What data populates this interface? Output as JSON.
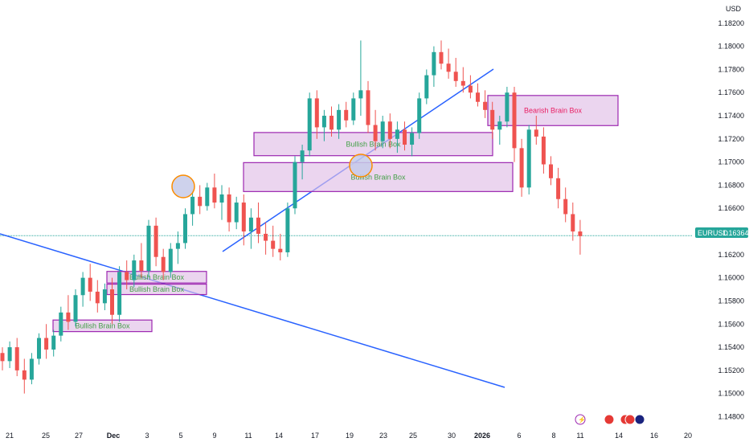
{
  "chart_data": {
    "type": "candlestick",
    "symbol": "EURUSD",
    "currency": "USD",
    "last_price": "1.16364",
    "colors": {
      "up": "#26a69a",
      "down": "#ef5350",
      "box_fill": "#e1bee7",
      "box_stroke": "#9c27b0",
      "bullish_text": "#43a047",
      "bearish_text": "#e91e63",
      "trendline": "#2962ff",
      "price_line": "#26a69a",
      "marker_fill": "#c5cae9",
      "marker_stroke": "#fb8c00"
    },
    "y_ticks": [
      "1.18200",
      "1.18000",
      "1.17800",
      "1.17600",
      "1.17400",
      "1.17200",
      "1.17000",
      "1.16800",
      "1.16600",
      "1.16400",
      "1.16200",
      "1.16000",
      "1.15800",
      "1.15600",
      "1.15400",
      "1.15200",
      "1.15000",
      "1.14800"
    ],
    "ylim": [
      1.1472,
      1.184
    ],
    "x_ticks": [
      {
        "label": "21",
        "i": 0
      },
      {
        "label": "25",
        "i": 3
      },
      {
        "label": "27",
        "i": 5
      },
      {
        "label": "Dec",
        "i": 7,
        "bold": true
      },
      {
        "label": "3",
        "i": 9
      },
      {
        "label": "5",
        "i": 11
      },
      {
        "label": "9",
        "i": 13
      },
      {
        "label": "11",
        "i": 15
      },
      {
        "label": "14",
        "i": 17
      },
      {
        "label": "17",
        "i": 19
      },
      {
        "label": "19",
        "i": 21
      },
      {
        "label": "23",
        "i": 23
      },
      {
        "label": "25",
        "i": 25
      },
      {
        "label": "30",
        "i": 28
      },
      {
        "label": "2026",
        "i": 30,
        "bold": true
      },
      {
        "label": "6",
        "i": 32
      },
      {
        "label": "8",
        "i": 34
      },
      {
        "label": "11",
        "i": 36
      },
      {
        "label": "14",
        "i": 38
      },
      {
        "label": "16",
        "i": 40
      },
      {
        "label": "20",
        "i": 42
      }
    ],
    "candles": [
      [
        1.1535,
        1.154,
        1.152,
        1.1528
      ],
      [
        1.1528,
        1.1545,
        1.1522,
        1.154
      ],
      [
        1.154,
        1.1548,
        1.1515,
        1.152
      ],
      [
        1.152,
        1.153,
        1.15,
        1.1512
      ],
      [
        1.1512,
        1.1535,
        1.1508,
        1.153
      ],
      [
        1.153,
        1.1552,
        1.1525,
        1.1548
      ],
      [
        1.1548,
        1.156,
        1.153,
        1.1538
      ],
      [
        1.1538,
        1.1555,
        1.1532,
        1.155
      ],
      [
        1.155,
        1.1575,
        1.1545,
        1.157
      ],
      [
        1.157,
        1.1585,
        1.1555,
        1.1562
      ],
      [
        1.1562,
        1.159,
        1.1558,
        1.1585
      ],
      [
        1.1585,
        1.1605,
        1.1575,
        1.16
      ],
      [
        1.16,
        1.1612,
        1.158,
        1.1588
      ],
      [
        1.1588,
        1.1598,
        1.157,
        1.1578
      ],
      [
        1.1578,
        1.1595,
        1.1572,
        1.159
      ],
      [
        1.159,
        1.16,
        1.156,
        1.1568
      ],
      [
        1.1568,
        1.161,
        1.1562,
        1.1605
      ],
      [
        1.1605,
        1.1615,
        1.159,
        1.1598
      ],
      [
        1.1598,
        1.162,
        1.1592,
        1.1615
      ],
      [
        1.1615,
        1.163,
        1.16,
        1.1606
      ],
      [
        1.1606,
        1.165,
        1.16,
        1.1645
      ],
      [
        1.1645,
        1.1652,
        1.161,
        1.1618
      ],
      [
        1.1618,
        1.1625,
        1.1598,
        1.1605
      ],
      [
        1.1605,
        1.163,
        1.16,
        1.1625
      ],
      [
        1.1625,
        1.164,
        1.1612,
        1.163
      ],
      [
        1.163,
        1.166,
        1.1625,
        1.1655
      ],
      [
        1.1655,
        1.1675,
        1.1645,
        1.167
      ],
      [
        1.167,
        1.168,
        1.1655,
        1.1662
      ],
      [
        1.1662,
        1.1682,
        1.1658,
        1.1678
      ],
      [
        1.1678,
        1.169,
        1.166,
        1.1665
      ],
      [
        1.1665,
        1.168,
        1.165,
        1.1672
      ],
      [
        1.1672,
        1.1678,
        1.164,
        1.1648
      ],
      [
        1.1648,
        1.167,
        1.1642,
        1.1665
      ],
      [
        1.1665,
        1.1672,
        1.1628,
        1.164
      ],
      [
        1.164,
        1.166,
        1.1625,
        1.1652
      ],
      [
        1.1652,
        1.1665,
        1.163,
        1.1638
      ],
      [
        1.1638,
        1.1648,
        1.162,
        1.1632
      ],
      [
        1.1632,
        1.1645,
        1.1618,
        1.1625
      ],
      [
        1.1625,
        1.1638,
        1.1615,
        1.1622
      ],
      [
        1.1622,
        1.1665,
        1.1618,
        1.166
      ],
      [
        1.166,
        1.1705,
        1.1655,
        1.17
      ],
      [
        1.17,
        1.1715,
        1.1685,
        1.171
      ],
      [
        1.171,
        1.176,
        1.1705,
        1.1755
      ],
      [
        1.1755,
        1.1762,
        1.172,
        1.173
      ],
      [
        1.173,
        1.1745,
        1.1718,
        1.174
      ],
      [
        1.174,
        1.1748,
        1.1722,
        1.1728
      ],
      [
        1.1728,
        1.175,
        1.172,
        1.1745
      ],
      [
        1.1745,
        1.1752,
        1.173,
        1.1736
      ],
      [
        1.1736,
        1.176,
        1.1732,
        1.1755
      ],
      [
        1.1755,
        1.1805,
        1.174,
        1.1762
      ],
      [
        1.1762,
        1.177,
        1.1725,
        1.1732
      ],
      [
        1.1732,
        1.1745,
        1.171,
        1.1718
      ],
      [
        1.1718,
        1.174,
        1.1712,
        1.1735
      ],
      [
        1.1735,
        1.1742,
        1.1712,
        1.172
      ],
      [
        1.172,
        1.1735,
        1.1708,
        1.1728
      ],
      [
        1.1728,
        1.1735,
        1.171,
        1.1715
      ],
      [
        1.1715,
        1.173,
        1.1705,
        1.1725
      ],
      [
        1.1725,
        1.176,
        1.172,
        1.1755
      ],
      [
        1.1755,
        1.178,
        1.175,
        1.1775
      ],
      [
        1.1775,
        1.18,
        1.1765,
        1.1795
      ],
      [
        1.1795,
        1.1805,
        1.178,
        1.1785
      ],
      [
        1.1785,
        1.1798,
        1.1772,
        1.1778
      ],
      [
        1.1778,
        1.179,
        1.1765,
        1.177
      ],
      [
        1.177,
        1.1782,
        1.176,
        1.1766
      ],
      [
        1.1766,
        1.1775,
        1.1755,
        1.176
      ],
      [
        1.176,
        1.1768,
        1.1748,
        1.1752
      ],
      [
        1.1752,
        1.1762,
        1.1738,
        1.1745
      ],
      [
        1.1745,
        1.1752,
        1.172,
        1.1728
      ],
      [
        1.1728,
        1.174,
        1.1715,
        1.1735
      ],
      [
        1.1735,
        1.1765,
        1.173,
        1.176
      ],
      [
        1.176,
        1.1765,
        1.17,
        1.1712
      ],
      [
        1.1712,
        1.172,
        1.167,
        1.1678
      ],
      [
        1.1678,
        1.1732,
        1.1672,
        1.1728
      ],
      [
        1.1728,
        1.174,
        1.1715,
        1.1722
      ],
      [
        1.1722,
        1.173,
        1.169,
        1.1698
      ],
      [
        1.1698,
        1.1705,
        1.168,
        1.1686
      ],
      [
        1.1686,
        1.1695,
        1.166,
        1.1668
      ],
      [
        1.1668,
        1.1678,
        1.1648,
        1.1655
      ],
      [
        1.1655,
        1.1665,
        1.1632,
        1.164
      ],
      [
        1.164,
        1.165,
        1.162,
        1.1636
      ]
    ],
    "boxes": [
      {
        "label": "Bullish Brain Box",
        "kind": "bullish",
        "x0": 66,
        "x1": 189,
        "y0": 1.15635,
        "y1": 1.15535
      },
      {
        "label": "Bullish Brain Box",
        "kind": "bullish",
        "x0": 133,
        "x1": 257,
        "y0": 1.16055,
        "y1": 1.15955
      },
      {
        "label": "Bullish Brain Box",
        "kind": "bullish",
        "x0": 133,
        "x1": 257,
        "y0": 1.15945,
        "y1": 1.15855
      },
      {
        "label": "Bullish Brain Box",
        "kind": "bullish",
        "x0": 316,
        "x1": 613,
        "y0": 1.17255,
        "y1": 1.17055
      },
      {
        "label": "Bullish Brain Box",
        "kind": "bullish",
        "x0": 303,
        "x1": 638,
        "y0": 1.16995,
        "y1": 1.16745
      },
      {
        "label": "Bearish Brain Box",
        "kind": "bearish",
        "x0": 607,
        "x1": 769,
        "y0": 1.17575,
        "y1": 1.17315
      }
    ]
  }
}
